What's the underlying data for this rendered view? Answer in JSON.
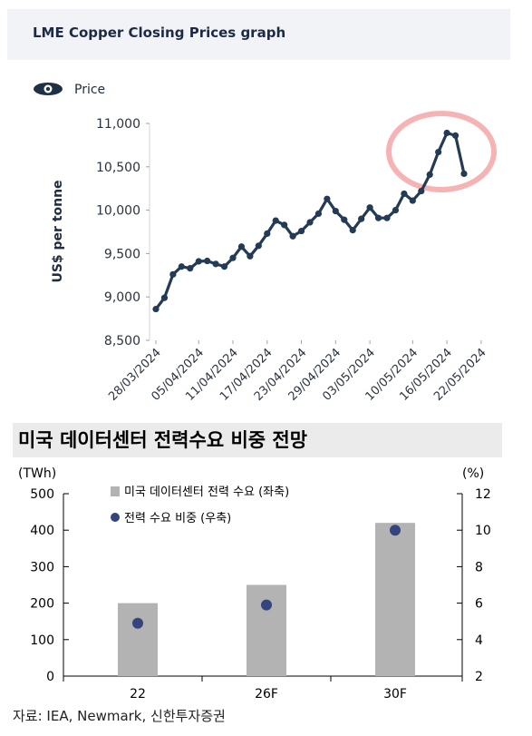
{
  "header": {
    "title": "LME Copper Closing Prices graph"
  },
  "chart_data": [
    {
      "type": "line",
      "legend": "Price",
      "ylabel": "US$ per tonne",
      "ylim": [
        8500,
        11000
      ],
      "yticks": [
        "8,500",
        "9,000",
        "9,500",
        "10,000",
        "10,500",
        "11,000"
      ],
      "ytick_values": [
        8500,
        9000,
        9500,
        10000,
        10500,
        11000
      ],
      "xtick_labels": [
        "28/03/2024",
        "05/04/2024",
        "11/04/2024",
        "17/04/2024",
        "23/04/2024",
        "29/04/2024",
        "03/05/2024",
        "10/05/2024",
        "16/05/2024",
        "22/05/2024"
      ],
      "xtick_index": [
        0,
        5,
        9,
        13,
        17,
        21,
        25,
        30,
        34,
        38
      ],
      "values": [
        8860,
        8990,
        9260,
        9350,
        9330,
        9410,
        9415,
        9380,
        9350,
        9450,
        9580,
        9470,
        9590,
        9730,
        9880,
        9830,
        9700,
        9760,
        9860,
        9960,
        10130,
        9990,
        9890,
        9770,
        9900,
        10030,
        9910,
        9910,
        10000,
        10190,
        10110,
        10220,
        10410,
        10670,
        10890,
        10860,
        10420
      ],
      "highlight_color": "#f4a6a6",
      "line_color": "#243b55"
    },
    {
      "type": "bar",
      "title": "미국 데이터센터 전력수요 비중 전망",
      "categories": [
        "22",
        "26F",
        "30F"
      ],
      "left_unit": "(TWh)",
      "right_unit": "(%)",
      "ylim_left": [
        0,
        500
      ],
      "ylim_right": [
        2,
        12
      ],
      "yticks_left": [
        "0",
        "100",
        "200",
        "300",
        "400",
        "500"
      ],
      "yticks_right": [
        "2",
        "4",
        "6",
        "8",
        "10",
        "12"
      ],
      "series": [
        {
          "name": "미국 데이터센터 전력 수요 (좌축)",
          "type": "bar",
          "values": [
            200,
            250,
            420
          ],
          "color": "#b3b3b3"
        },
        {
          "name": "전력 수요 비중 (우축)",
          "type": "scatter",
          "values": [
            4.9,
            5.9,
            10.0
          ],
          "color": "#34457e"
        }
      ]
    }
  ],
  "source": "자료: IEA, Newmark, 신한투자증권"
}
